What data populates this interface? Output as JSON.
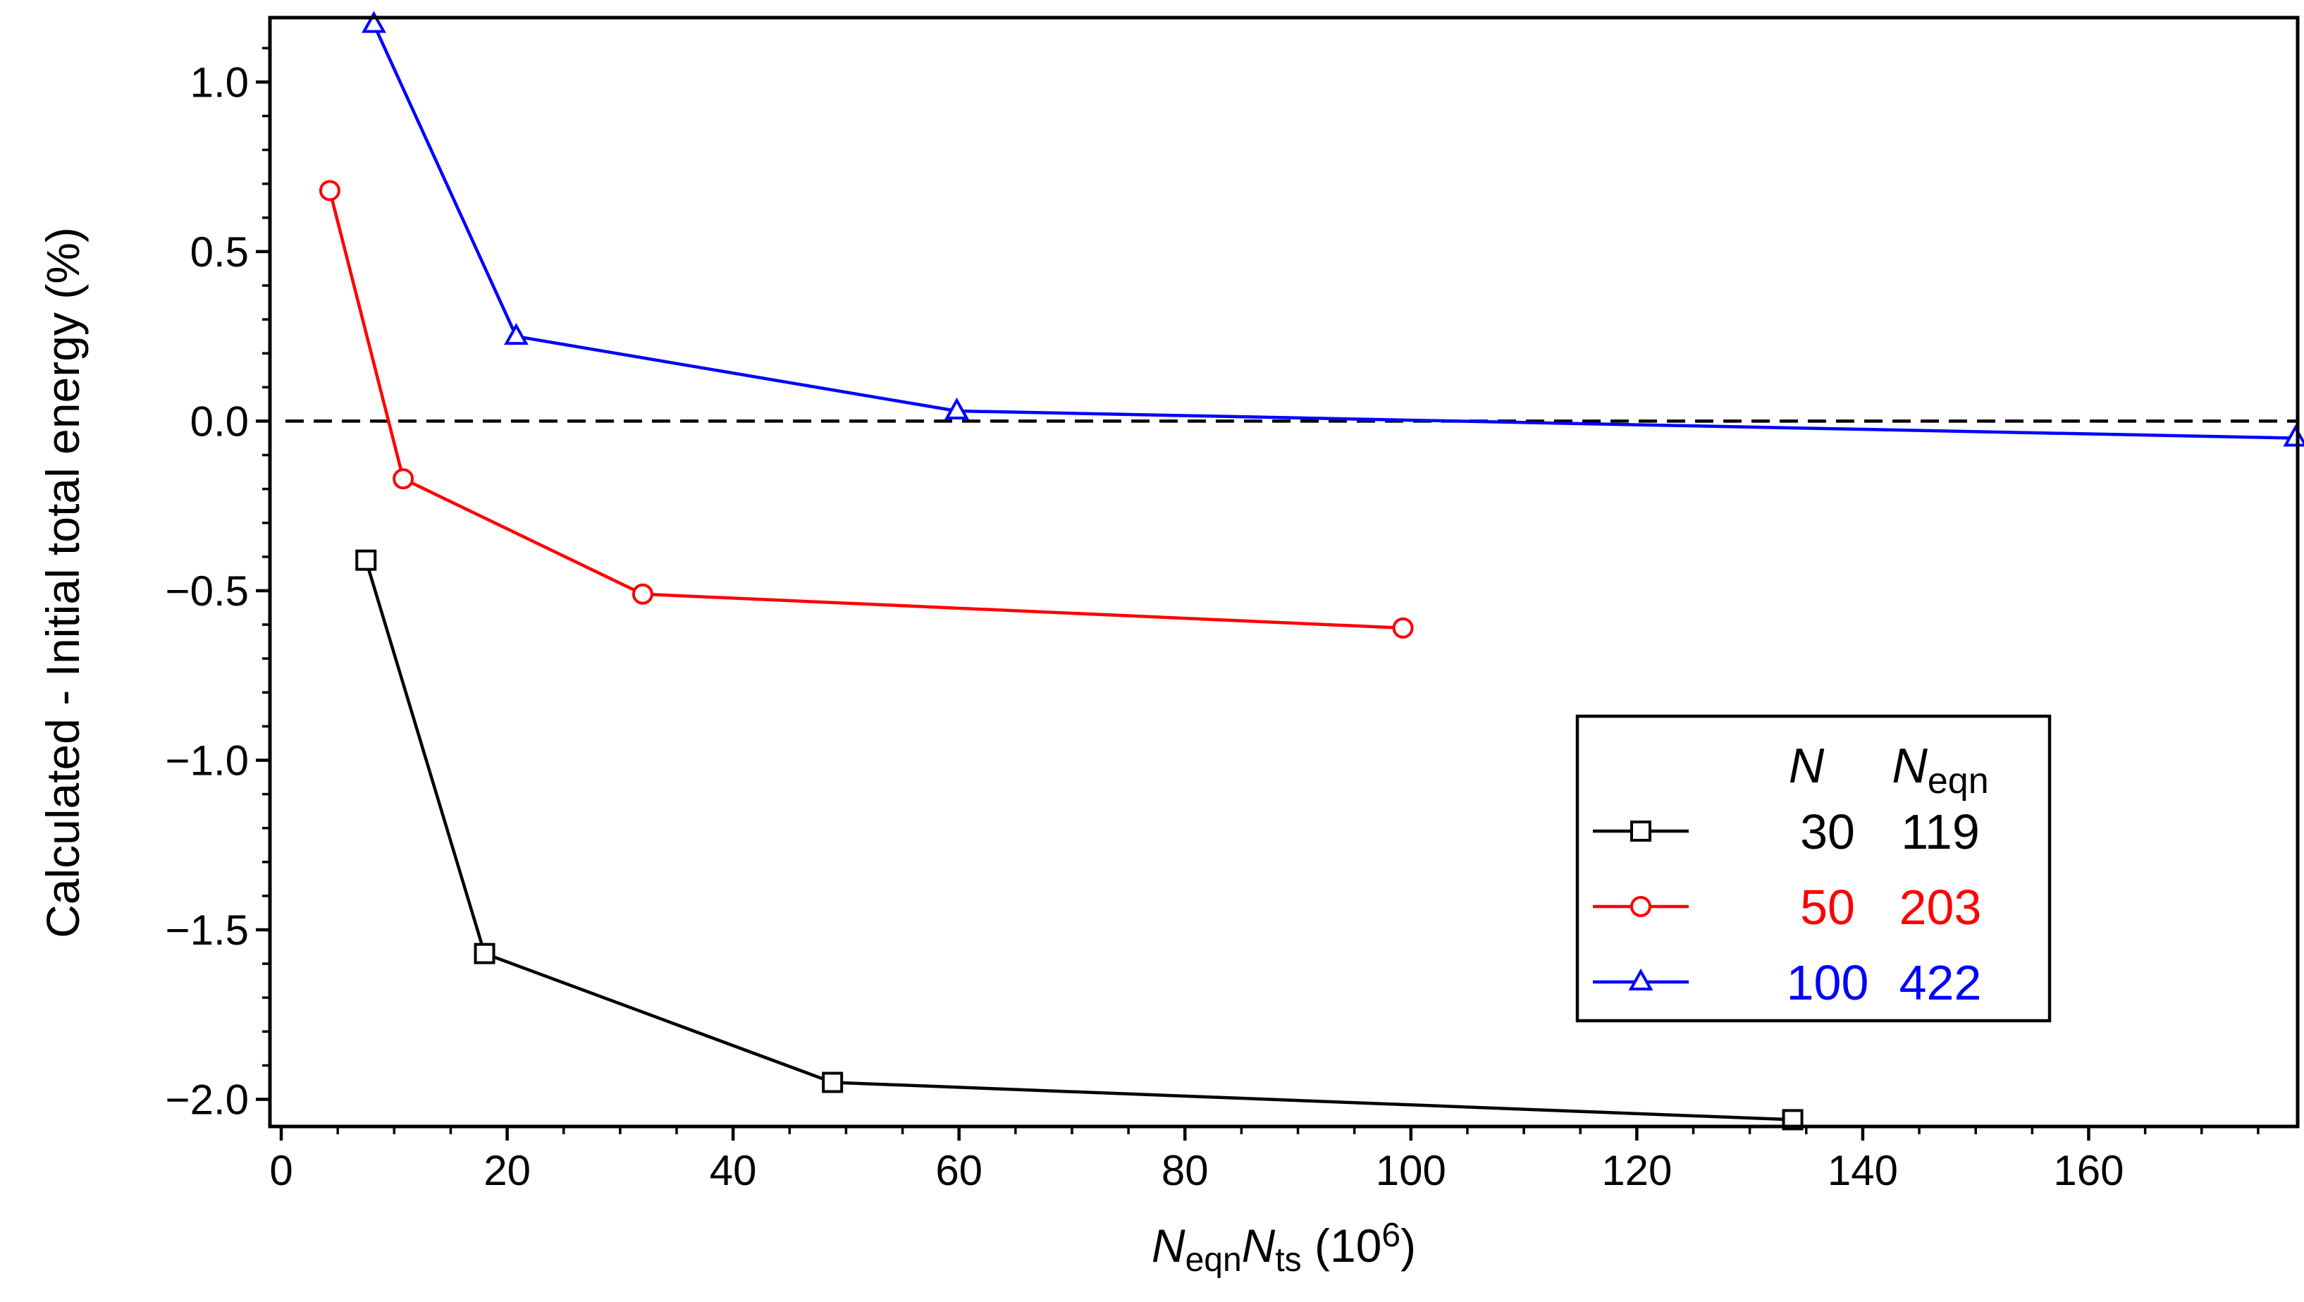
{
  "chart_data": {
    "type": "line",
    "title": "",
    "xlabel": {
      "parts": [
        {
          "text": "N",
          "style": "italic"
        },
        {
          "text": "eqn",
          "style": "sub"
        },
        {
          "text": "N",
          "style": "italic"
        },
        {
          "text": "ts",
          "style": "sub"
        },
        {
          "text": " (10",
          "style": "normal"
        },
        {
          "text": "6",
          "style": "sup"
        },
        {
          "text": ")",
          "style": "normal"
        }
      ]
    },
    "ylabel": "Calculated - Initial total energy (%)",
    "xlim": [
      -1,
      178.5
    ],
    "ylim": [
      -2.08,
      1.19
    ],
    "xticks": [
      0,
      20,
      40,
      60,
      80,
      100,
      120,
      140,
      160
    ],
    "xtick_labels": [
      "0",
      "20",
      "40",
      "60",
      "80",
      "100",
      "120",
      "140",
      "160"
    ],
    "x_minor_step": 5,
    "yticks": [
      1.0,
      0.5,
      0.0,
      -0.5,
      -1.0,
      -1.5,
      -2.0
    ],
    "ytick_labels": [
      "1.0",
      "0.5",
      "0.0",
      "−0.5",
      "−1.0",
      "−1.5",
      "−2.0"
    ],
    "y_minor_step": 0.1,
    "reference_line": {
      "y": 0.0,
      "style": "dashed",
      "color": "#000000"
    },
    "legend": {
      "position": "lower-right",
      "header": {
        "col1": "N",
        "col2_main": "N",
        "col2_sub": "eqn"
      }
    },
    "series": [
      {
        "name": "N=30",
        "N": "30",
        "N_eqn": "119",
        "color": "#000000",
        "marker": "square",
        "x": [
          7.5,
          18.0,
          48.8,
          133.8
        ],
        "y": [
          -0.41,
          -1.57,
          -1.95,
          -2.06
        ]
      },
      {
        "name": "N=50",
        "N": "50",
        "N_eqn": "203",
        "color": "#ff0000",
        "marker": "circle",
        "x": [
          4.3,
          10.8,
          32.0,
          99.3
        ],
        "y": [
          0.68,
          -0.17,
          -0.51,
          -0.61
        ]
      },
      {
        "name": "N=100",
        "N": "100",
        "N_eqn": "422",
        "color": "#0000ff",
        "marker": "triangle",
        "x": [
          8.2,
          20.8,
          59.8,
          178.3
        ],
        "y": [
          1.17,
          0.25,
          0.03,
          -0.05
        ]
      }
    ]
  }
}
